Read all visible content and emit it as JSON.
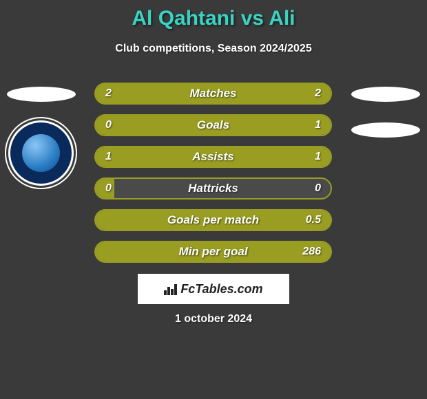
{
  "title": "Al Qahtani vs Ali",
  "subtitle": "Club competitions, Season 2024/2025",
  "footer_brand": "FcTables.com",
  "date": "1 october 2024",
  "colors": {
    "background": "#3a3a3a",
    "accent": "#39d4c4",
    "bar_border": "#999e22",
    "bar_fill": "#999e22",
    "row_bg": "#4a4a4a",
    "text": "#ffffff",
    "badge_bg": "#ffffff",
    "badge_text": "#222222",
    "logo_bg": "#0a2a5c"
  },
  "stats": {
    "type": "horizontal-comparison-bars",
    "rows": [
      {
        "label": "Matches",
        "left_value": "2",
        "right_value": "2",
        "left_fill_pct": 50,
        "right_fill_pct": 50
      },
      {
        "label": "Goals",
        "left_value": "0",
        "right_value": "1",
        "left_fill_pct": 18,
        "right_fill_pct": 82
      },
      {
        "label": "Assists",
        "left_value": "1",
        "right_value": "1",
        "left_fill_pct": 50,
        "right_fill_pct": 50
      },
      {
        "label": "Hattricks",
        "left_value": "0",
        "right_value": "0",
        "left_fill_pct": 50,
        "right_fill_pct": 0,
        "empty_both": true
      },
      {
        "label": "Goals per match",
        "left_value": "",
        "right_value": "0.5",
        "left_fill_pct": 0,
        "right_fill_pct": 100
      },
      {
        "label": "Min per goal",
        "left_value": "",
        "right_value": "286",
        "left_fill_pct": 0,
        "right_fill_pct": 100
      }
    ]
  },
  "avatars": {
    "left_ellipse_1": true,
    "right_ellipse_1": true,
    "right_ellipse_2": true,
    "left_club_logo": true
  }
}
